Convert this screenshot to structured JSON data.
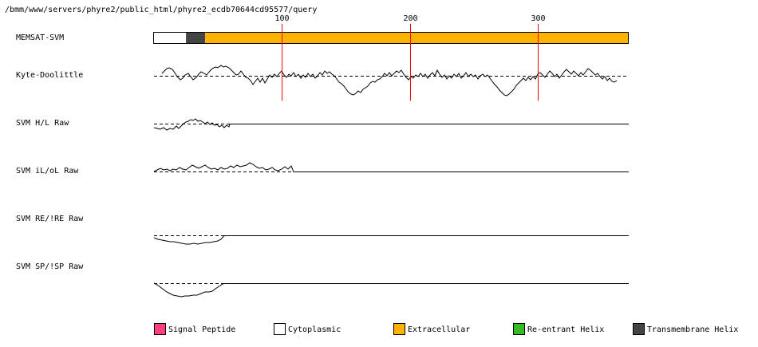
{
  "header": {
    "path": "/bmm/www/servers/phyre2/public_html/phyre2_ecdb70644cd95577/query"
  },
  "ruler": {
    "ticks": [
      {
        "label": "100",
        "position": 100
      },
      {
        "label": "200",
        "position": 200
      },
      {
        "label": "300",
        "position": 300
      }
    ]
  },
  "tracks": [
    {
      "label": "MEMSAT-SVM"
    },
    {
      "label": "Kyte-Doolittle"
    },
    {
      "label": "SVM H/L Raw"
    },
    {
      "label": "SVM iL/oL Raw"
    },
    {
      "label": "SVM RE/!RE Raw"
    },
    {
      "label": "SVM SP/!SP Raw"
    }
  ],
  "sequence_length": 371,
  "memsat_segments": [
    {
      "type": "cytoplasmic",
      "start": 1,
      "end": 25
    },
    {
      "type": "transmembrane",
      "start": 26,
      "end": 40
    },
    {
      "type": "extracellular",
      "start": 41,
      "end": 371
    }
  ],
  "legend": [
    {
      "key": "signal",
      "label": "Signal Peptide",
      "color": "#ff3f7f"
    },
    {
      "key": "cytoplasmic",
      "label": "Cytoplasmic",
      "color": "#ffffff"
    },
    {
      "key": "extracellular",
      "label": "Extracellular",
      "color": "#ffb300"
    },
    {
      "key": "reentrant",
      "label": "Re-entrant Helix",
      "color": "#33bb22"
    },
    {
      "key": "transmembrane",
      "label": "Transmembrane Helix",
      "color": "#444444"
    }
  ],
  "colors": {
    "tick_line": "#ff0000",
    "trace": "#000000"
  }
}
